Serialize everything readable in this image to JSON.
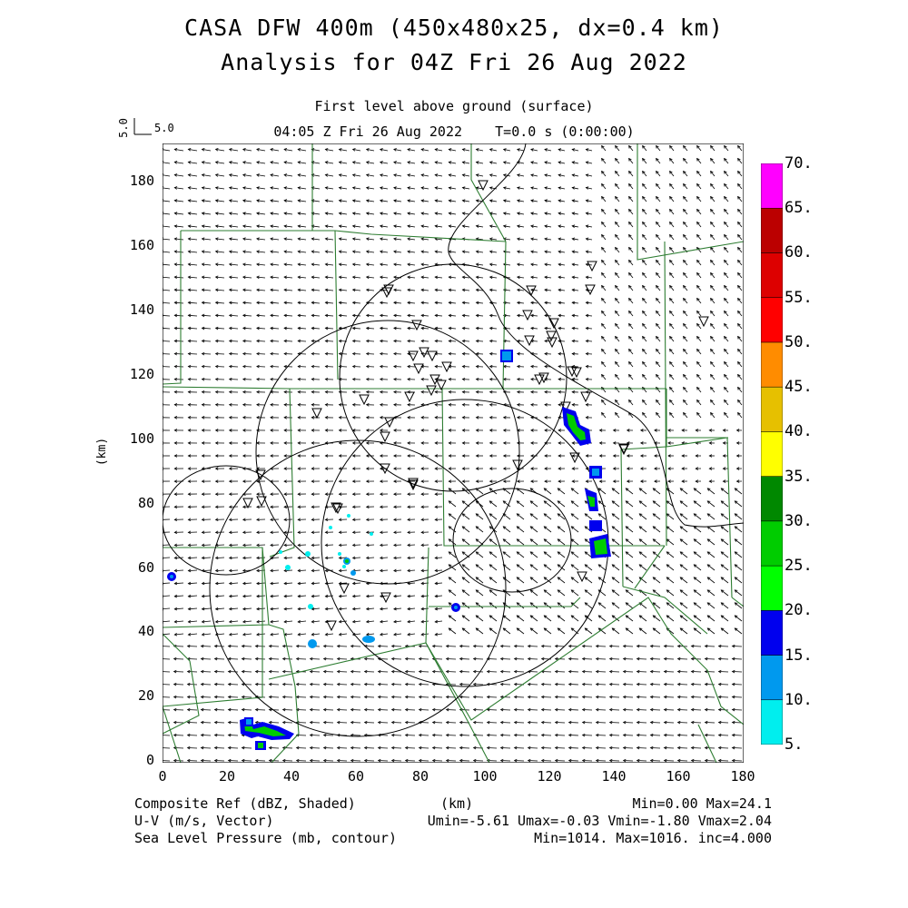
{
  "header": {
    "title1": "CASA DFW 400m (450x480x25, dx=0.4 km)",
    "title2": "Analysis for 04Z Fri 26 Aug 2022",
    "level": "First level above ground (surface)",
    "time": "04:05 Z Fri 26 Aug 2022    T=0.0 s (0:00:00)",
    "ref_vector_label": "5.0",
    "ref_vector_label_rot": "5.0"
  },
  "axes": {
    "xlabel": "(km)",
    "ylabel": "(km)",
    "xticks": [
      "0",
      "20",
      "40",
      "60",
      "80",
      "100",
      "120",
      "140",
      "160",
      "180"
    ],
    "yticks": [
      "0",
      "20",
      "40",
      "60",
      "80",
      "100",
      "120",
      "140",
      "160",
      "180"
    ]
  },
  "colorbar": {
    "labels": [
      "5.",
      "10.",
      "15.",
      "20.",
      "25.",
      "30.",
      "35.",
      "40.",
      "45.",
      "50.",
      "55.",
      "60.",
      "65.",
      "70."
    ],
    "colors": [
      "#00eeee",
      "#0099ee",
      "#0000ee",
      "#00ff00",
      "#00cc00",
      "#008800",
      "#ffff00",
      "#e6c000",
      "#ff8c00",
      "#ff0000",
      "#dd0000",
      "#bb0000",
      "#ff00ff"
    ]
  },
  "footer": {
    "f1_left": "Composite Ref (dBZ, Shaded)",
    "f1_mid": "(km)",
    "f1_right": "Min=0.00 Max=24.1",
    "f2_left": "U-V (m/s, Vector)",
    "f2_right": "Umin=-5.61 Umax=-0.03 Vmin=-1.80 Vmax=2.04",
    "f3_left": "Sea Level Pressure (mb, contour)",
    "f3_right": "Min=1014. Max=1016. inc=4.000"
  }
}
